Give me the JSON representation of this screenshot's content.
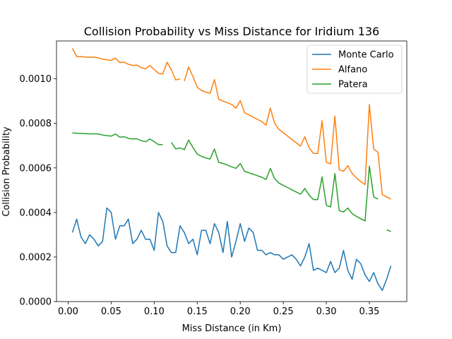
{
  "chart_data": {
    "type": "line",
    "title": "Collision Probability vs Miss Distance for Iridium 136",
    "xlabel": "Miss Distance (in Km)",
    "ylabel": "Collision Probability",
    "xlim": [
      -0.0135,
      0.3935
    ],
    "ylim": [
      0.0,
      0.00117
    ],
    "xticks": [
      0.0,
      0.05,
      0.1,
      0.15,
      0.2,
      0.25,
      0.3,
      0.35
    ],
    "xtick_labels": [
      "0.00",
      "0.05",
      "0.10",
      "0.15",
      "0.20",
      "0.25",
      "0.30",
      "0.35"
    ],
    "yticks": [
      0.0,
      0.0002,
      0.0004,
      0.0006,
      0.0008,
      0.001
    ],
    "ytick_labels": [
      "0.0000",
      "0.0002",
      "0.0004",
      "0.0006",
      "0.0008",
      "0.0010"
    ],
    "grid": false,
    "legend_position": "top-right",
    "series": [
      {
        "name": "Monte Carlo",
        "color": "#1f77b4",
        "points": [
          [
            0.005,
            0.00031
          ],
          [
            0.01,
            0.00037
          ],
          [
            0.015,
            0.00029
          ],
          [
            0.02,
            0.00026
          ],
          [
            0.025,
            0.0003
          ],
          [
            0.03,
            0.00028
          ],
          [
            0.035,
            0.00025
          ],
          [
            0.04,
            0.00027
          ],
          [
            0.045,
            0.00042
          ],
          [
            0.05,
            0.0004
          ],
          [
            0.055,
            0.00028
          ],
          [
            0.06,
            0.00034
          ],
          [
            0.065,
            0.00034
          ],
          [
            0.07,
            0.00037
          ],
          [
            0.075,
            0.00026
          ],
          [
            0.08,
            0.00028
          ],
          [
            0.085,
            0.00032
          ],
          [
            0.09,
            0.00028
          ],
          [
            0.095,
            0.00028
          ],
          [
            0.1,
            0.00023
          ],
          [
            0.105,
            0.0004
          ],
          [
            0.11,
            0.00036
          ],
          [
            0.115,
            0.00025
          ],
          [
            0.12,
            0.00022
          ],
          [
            0.125,
            0.00022
          ],
          [
            0.13,
            0.00034
          ],
          [
            0.135,
            0.00031
          ],
          [
            0.14,
            0.00026
          ],
          [
            0.145,
            0.00028
          ],
          [
            0.15,
            0.00021
          ],
          [
            0.155,
            0.00032
          ],
          [
            0.16,
            0.00032
          ],
          [
            0.165,
            0.00026
          ],
          [
            0.17,
            0.00035
          ],
          [
            0.175,
            0.00031
          ],
          [
            0.18,
            0.00022
          ],
          [
            0.185,
            0.00036
          ],
          [
            0.19,
            0.0002
          ],
          [
            0.195,
            0.00027
          ],
          [
            0.2,
            0.00035
          ],
          [
            0.205,
            0.00027
          ],
          [
            0.21,
            0.00033
          ],
          [
            0.215,
            0.00031
          ],
          [
            0.22,
            0.00023
          ],
          [
            0.225,
            0.00023
          ],
          [
            0.23,
            0.00021
          ],
          [
            0.235,
            0.00022
          ],
          [
            0.24,
            0.00021
          ],
          [
            0.245,
            0.00021
          ],
          [
            0.25,
            0.00019
          ],
          [
            0.255,
            0.0002
          ],
          [
            0.26,
            0.00021
          ],
          [
            0.265,
            0.00019
          ],
          [
            0.27,
            0.00016
          ],
          [
            0.275,
            0.0002
          ],
          [
            0.28,
            0.00026
          ],
          [
            0.285,
            0.00014
          ],
          [
            0.29,
            0.00015
          ],
          [
            0.295,
            0.00014
          ],
          [
            0.3,
            0.00013
          ],
          [
            0.305,
            0.00018
          ],
          [
            0.31,
            0.00013
          ],
          [
            0.315,
            0.00015
          ],
          [
            0.32,
            0.00023
          ],
          [
            0.325,
            0.00014
          ],
          [
            0.33,
            0.0001
          ],
          [
            0.335,
            0.00019
          ],
          [
            0.34,
            0.00017
          ],
          [
            0.345,
            0.00012
          ],
          [
            0.35,
            9e-05
          ],
          [
            0.355,
            0.00013
          ],
          [
            0.36,
            8e-05
          ],
          [
            0.365,
            5e-05
          ],
          [
            0.37,
            0.0001
          ],
          [
            0.375,
            0.00016
          ]
        ]
      },
      {
        "name": "Alfano",
        "color": "#ff7f0e",
        "points": [
          [
            0.005,
            0.001137
          ],
          [
            0.01,
            0.0011
          ],
          [
            0.015,
            0.0011
          ],
          [
            0.02,
            0.001098
          ],
          [
            0.025,
            0.001097
          ],
          [
            0.03,
            0.001097
          ],
          [
            0.035,
            0.001095
          ],
          [
            0.04,
            0.001088
          ],
          [
            0.045,
            0.001085
          ],
          [
            0.05,
            0.001083
          ],
          [
            0.055,
            0.001093
          ],
          [
            0.06,
            0.001073
          ],
          [
            0.065,
            0.001075
          ],
          [
            0.07,
            0.001065
          ],
          [
            0.075,
            0.00106
          ],
          [
            0.08,
            0.001062
          ],
          [
            0.085,
            0.00105
          ],
          [
            0.09,
            0.001045
          ],
          [
            0.095,
            0.00106
          ],
          [
            0.1,
            0.001042
          ],
          [
            0.105,
            0.001025
          ],
          [
            0.11,
            0.001022
          ],
          [
            0.115,
            0.001075
          ],
          [
            0.12,
            0.00104
          ],
          [
            0.125,
            0.000995
          ],
          [
            0.13,
            0.001
          ],
          null,
          [
            0.135,
            0.00099
          ],
          [
            0.14,
            0.001053
          ],
          [
            0.145,
            0.00101
          ],
          [
            0.15,
            0.000962
          ],
          [
            0.155,
            0.000948
          ],
          [
            0.16,
            0.00094
          ],
          [
            0.165,
            0.000935
          ],
          [
            0.17,
            0.000997
          ],
          [
            0.175,
            0.000908
          ],
          [
            0.18,
            0.0009
          ],
          [
            0.185,
            0.000893
          ],
          [
            0.19,
            0.000885
          ],
          [
            0.195,
            0.000868
          ],
          [
            0.2,
            0.000902
          ],
          [
            0.205,
            0.000848
          ],
          [
            0.21,
            0.000838
          ],
          [
            0.215,
            0.000828
          ],
          [
            0.22,
            0.000818
          ],
          [
            0.225,
            0.000808
          ],
          [
            0.23,
            0.000792
          ],
          [
            0.235,
            0.000868
          ],
          [
            0.24,
            0.0008
          ],
          [
            0.245,
            0.000773
          ],
          [
            0.25,
            0.000758
          ],
          [
            0.255,
            0.000743
          ],
          [
            0.26,
            0.000728
          ],
          [
            0.265,
            0.000713
          ],
          [
            0.27,
            0.000698
          ],
          [
            0.275,
            0.00074
          ],
          [
            0.28,
            0.00069
          ],
          [
            0.285,
            0.000665
          ],
          [
            0.29,
            0.000665
          ],
          [
            0.295,
            0.000812
          ],
          [
            0.3,
            0.000625
          ],
          [
            0.305,
            0.000618
          ],
          [
            0.31,
            0.000833
          ],
          [
            0.315,
            0.000592
          ],
          [
            0.32,
            0.000585
          ],
          [
            0.325,
            0.00061
          ],
          [
            0.33,
            0.000575
          ],
          [
            0.335,
            0.000555
          ],
          [
            0.34,
            0.000538
          ],
          [
            0.345,
            0.000525
          ],
          [
            0.35,
            0.000885
          ],
          [
            0.355,
            0.000685
          ],
          [
            0.36,
            0.00067
          ],
          [
            0.365,
            0.00048
          ],
          [
            0.37,
            0.00047
          ],
          [
            0.375,
            0.00046
          ]
        ]
      },
      {
        "name": "Patera",
        "color": "#2ca02c",
        "points": [
          [
            0.005,
            0.000757
          ],
          [
            0.01,
            0.000756
          ],
          [
            0.015,
            0.000755
          ],
          [
            0.02,
            0.000754
          ],
          [
            0.025,
            0.000753
          ],
          [
            0.03,
            0.000753
          ],
          [
            0.035,
            0.000752
          ],
          [
            0.04,
            0.000748
          ],
          [
            0.045,
            0.000745
          ],
          [
            0.05,
            0.000743
          ],
          [
            0.055,
            0.000752
          ],
          [
            0.06,
            0.000738
          ],
          [
            0.065,
            0.00074
          ],
          [
            0.07,
            0.000732
          ],
          [
            0.075,
            0.00073
          ],
          [
            0.08,
            0.000731
          ],
          [
            0.085,
            0.000722
          ],
          [
            0.09,
            0.000718
          ],
          [
            0.095,
            0.00073
          ],
          [
            0.1,
            0.000718
          ],
          [
            0.105,
            0.000705
          ],
          [
            0.11,
            0.000705
          ],
          null,
          [
            0.12,
            0.000715
          ],
          [
            0.125,
            0.000685
          ],
          [
            0.13,
            0.00069
          ],
          [
            0.135,
            0.000682
          ],
          [
            0.14,
            0.000725
          ],
          [
            0.145,
            0.000692
          ],
          [
            0.15,
            0.000662
          ],
          [
            0.155,
            0.000652
          ],
          [
            0.16,
            0.000645
          ],
          [
            0.165,
            0.00064
          ],
          [
            0.17,
            0.000685
          ],
          [
            0.175,
            0.000625
          ],
          [
            0.18,
            0.00062
          ],
          [
            0.185,
            0.000613
          ],
          [
            0.19,
            0.000605
          ],
          [
            0.195,
            0.000598
          ],
          [
            0.2,
            0.00062
          ],
          [
            0.205,
            0.000585
          ],
          [
            0.21,
            0.000578
          ],
          [
            0.215,
            0.000572
          ],
          [
            0.22,
            0.000565
          ],
          [
            0.225,
            0.000558
          ],
          [
            0.23,
            0.000548
          ],
          [
            0.235,
            0.000598
          ],
          [
            0.24,
            0.000552
          ],
          [
            0.245,
            0.000532
          ],
          [
            0.25,
            0.000522
          ],
          [
            0.255,
            0.000512
          ],
          [
            0.26,
            0.000502
          ],
          [
            0.265,
            0.000492
          ],
          [
            0.27,
            0.000482
          ],
          [
            0.275,
            0.000508
          ],
          [
            0.28,
            0.000478
          ],
          [
            0.285,
            0.000458
          ],
          [
            0.29,
            0.000458
          ],
          [
            0.295,
            0.00056
          ],
          [
            0.3,
            0.000432
          ],
          [
            0.305,
            0.000425
          ],
          [
            0.31,
            0.000575
          ],
          [
            0.315,
            0.000408
          ],
          [
            0.32,
            0.000402
          ],
          [
            0.325,
            0.00042
          ],
          [
            0.33,
            0.000395
          ],
          [
            0.335,
            0.000382
          ],
          [
            0.34,
            0.000372
          ],
          [
            0.345,
            0.000362
          ],
          [
            0.35,
            0.000608
          ],
          [
            0.355,
            0.00047
          ],
          [
            0.36,
            0.00046
          ],
          null,
          [
            0.37,
            0.000322
          ],
          [
            0.375,
            0.000315
          ]
        ]
      }
    ]
  }
}
